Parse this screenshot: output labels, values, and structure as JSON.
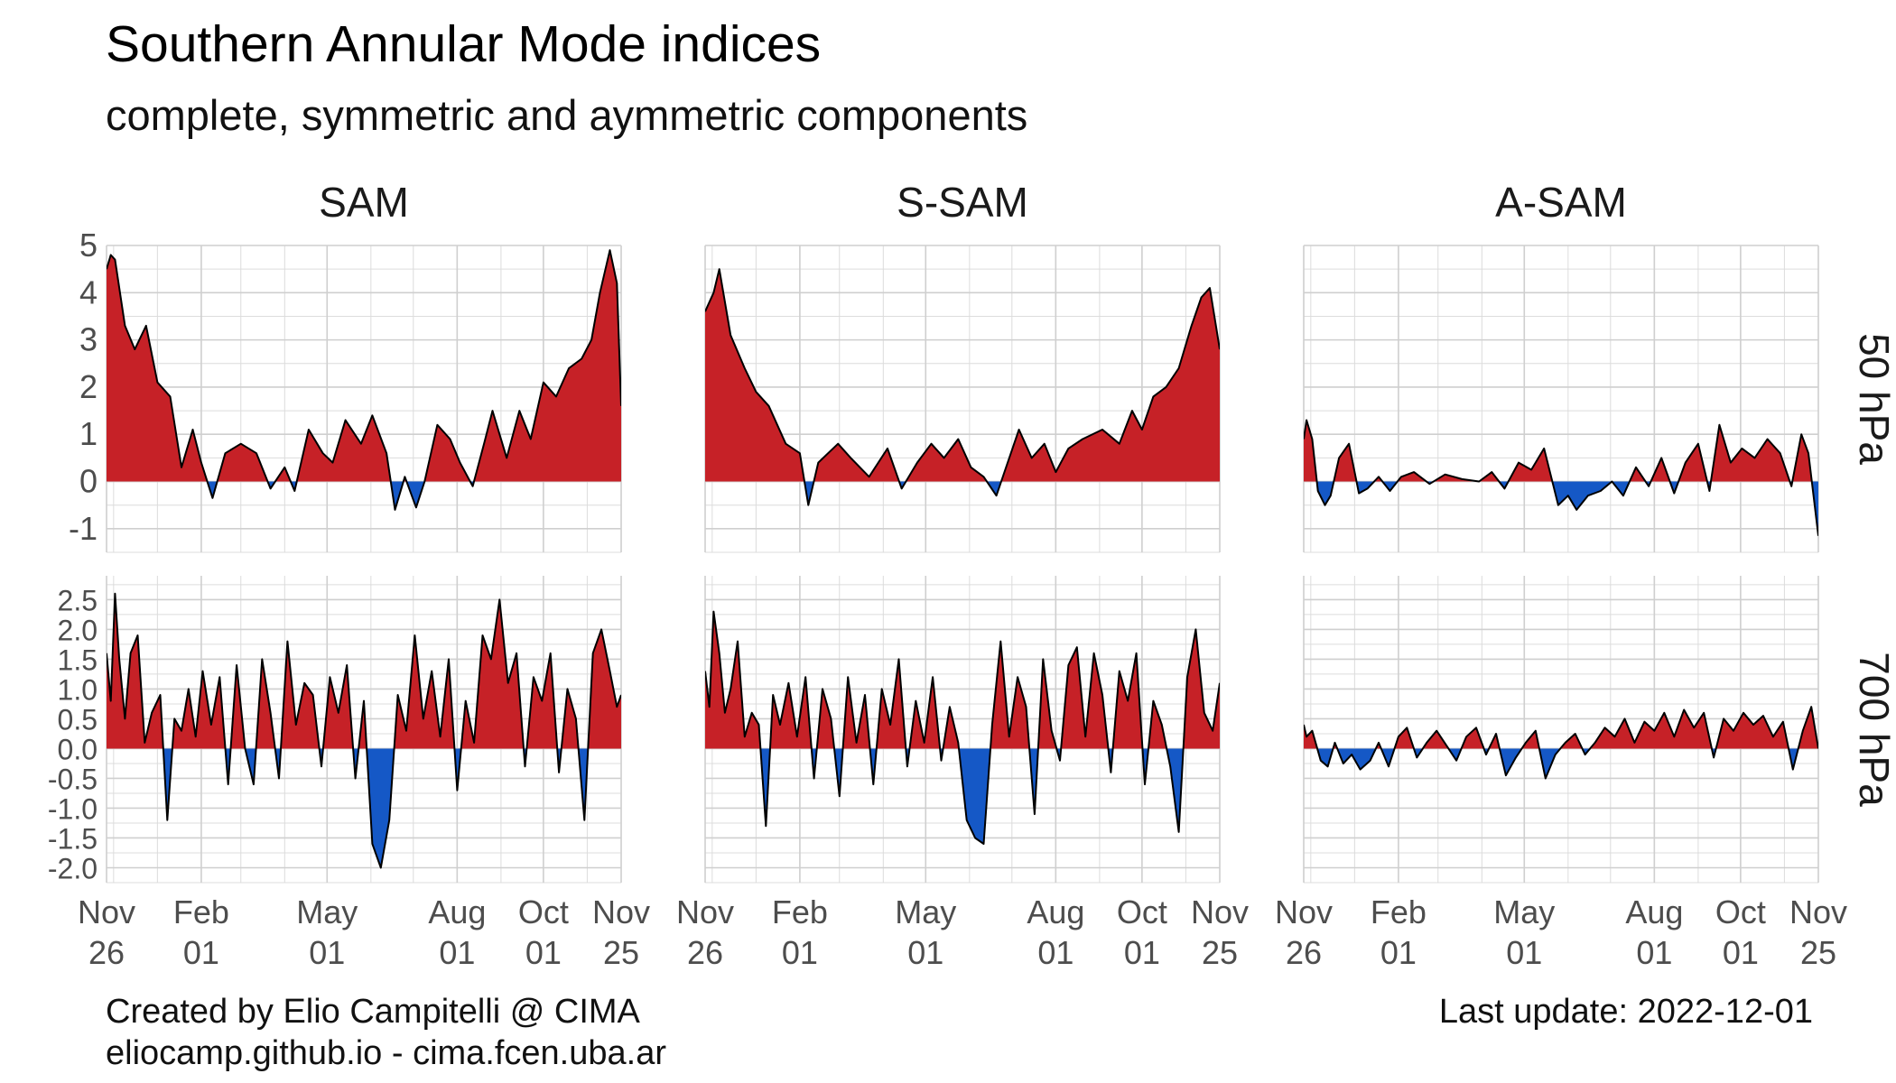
{
  "title": "Southern Annular Mode indices",
  "subtitle": "complete, symmetric and aymmetric components",
  "caption": {
    "credit_line1": "Created by Elio Campitelli @ CIMA",
    "credit_line2": "eliocamp.github.io - cima.fcen.uba.ar",
    "last_update": "Last update: 2022-12-01"
  },
  "colors": {
    "positive": "#c62127",
    "negative": "#1558c6",
    "line": "#000000",
    "grid": "#dcdcdc"
  },
  "chart_data": {
    "type": "area",
    "facet_columns": [
      "SAM",
      "S-SAM",
      "A-SAM"
    ],
    "facet_rows": [
      "50 hPa",
      "700 hPa"
    ],
    "x_range": [
      "2021-11-26",
      "2022-11-25"
    ],
    "x_ticks": [
      {
        "date": "2021-11-26",
        "line1": "Nov",
        "line2": "26"
      },
      {
        "date": "2022-02-01",
        "line1": "Feb",
        "line2": "01"
      },
      {
        "date": "2022-05-01",
        "line1": "May",
        "line2": "01"
      },
      {
        "date": "2022-08-01",
        "line1": "Aug",
        "line2": "01"
      },
      {
        "date": "2022-10-01",
        "line1": "Oct",
        "line2": "01"
      },
      {
        "date": "2022-11-25",
        "line1": "Nov",
        "line2": "25"
      }
    ],
    "rows": [
      {
        "name": "50 hPa",
        "ylim": [
          -1.5,
          5.0
        ],
        "y_ticks": [
          {
            "v": 5,
            "label": "5"
          },
          {
            "v": 4,
            "label": "4"
          },
          {
            "v": 3,
            "label": "3"
          },
          {
            "v": 2,
            "label": "2"
          },
          {
            "v": 1,
            "label": "1"
          },
          {
            "v": 0,
            "label": "0"
          },
          {
            "v": -1,
            "label": "-1"
          }
        ]
      },
      {
        "name": "700 hPa",
        "ylim": [
          -2.25,
          2.9
        ],
        "y_ticks": [
          {
            "v": 2.5,
            "label": "2.5"
          },
          {
            "v": 2.0,
            "label": "2.0"
          },
          {
            "v": 1.5,
            "label": "1.5"
          },
          {
            "v": 1.0,
            "label": "1.0"
          },
          {
            "v": 0.5,
            "label": "0.5"
          },
          {
            "v": 0.0,
            "label": "0.0"
          },
          {
            "v": -0.5,
            "label": "-0.5"
          },
          {
            "v": -1.0,
            "label": "-1.0"
          },
          {
            "v": -1.5,
            "label": "-1.5"
          },
          {
            "v": -2.0,
            "label": "-2.0"
          }
        ]
      }
    ],
    "series": [
      {
        "name": "SAM 50 hPa",
        "x": [
          "2021-11-26",
          "2021-11-29",
          "2021-12-02",
          "2021-12-09",
          "2021-12-16",
          "2021-12-24",
          "2022-01-01",
          "2022-01-10",
          "2022-01-18",
          "2022-01-26",
          "2022-02-01",
          "2022-02-09",
          "2022-02-18",
          "2022-03-01",
          "2022-03-12",
          "2022-03-22",
          "2022-04-01",
          "2022-04-08",
          "2022-04-18",
          "2022-04-28",
          "2022-05-05",
          "2022-05-14",
          "2022-05-25",
          "2022-06-02",
          "2022-06-12",
          "2022-06-18",
          "2022-06-25",
          "2022-07-03",
          "2022-07-09",
          "2022-07-18",
          "2022-07-27",
          "2022-08-03",
          "2022-08-12",
          "2022-08-20",
          "2022-08-26",
          "2022-09-05",
          "2022-09-14",
          "2022-09-22",
          "2022-10-01",
          "2022-10-10",
          "2022-10-19",
          "2022-10-28",
          "2022-11-04",
          "2022-11-10",
          "2022-11-17",
          "2022-11-22",
          "2022-11-25"
        ],
        "y": [
          4.5,
          4.8,
          4.7,
          3.3,
          2.8,
          3.3,
          2.1,
          1.8,
          0.3,
          1.1,
          0.4,
          -0.35,
          0.6,
          0.8,
          0.6,
          -0.15,
          0.3,
          -0.2,
          1.1,
          0.6,
          0.4,
          1.3,
          0.8,
          1.4,
          0.6,
          -0.6,
          0.1,
          -0.55,
          0.0,
          1.2,
          0.9,
          0.4,
          -0.1,
          0.8,
          1.5,
          0.5,
          1.5,
          0.9,
          2.1,
          1.8,
          2.4,
          2.6,
          3.0,
          4.0,
          4.9,
          4.2,
          1.6
        ]
      },
      {
        "name": "S-SAM 50 hPa",
        "x": [
          "2021-11-26",
          "2021-12-02",
          "2021-12-06",
          "2021-12-14",
          "2021-12-24",
          "2022-01-01",
          "2022-01-10",
          "2022-01-22",
          "2022-02-01",
          "2022-02-07",
          "2022-02-14",
          "2022-02-28",
          "2022-03-09",
          "2022-03-22",
          "2022-04-04",
          "2022-04-14",
          "2022-04-25",
          "2022-05-05",
          "2022-05-14",
          "2022-05-24",
          "2022-06-02",
          "2022-06-11",
          "2022-06-20",
          "2022-06-28",
          "2022-07-06",
          "2022-07-15",
          "2022-07-24",
          "2022-08-01",
          "2022-08-10",
          "2022-08-20",
          "2022-09-03",
          "2022-09-15",
          "2022-09-24",
          "2022-10-01",
          "2022-10-09",
          "2022-10-18",
          "2022-10-27",
          "2022-11-05",
          "2022-11-12",
          "2022-11-18",
          "2022-11-25"
        ],
        "y": [
          3.6,
          4.0,
          4.5,
          3.1,
          2.4,
          1.9,
          1.6,
          0.8,
          0.6,
          -0.5,
          0.4,
          0.8,
          0.5,
          0.1,
          0.7,
          -0.15,
          0.4,
          0.8,
          0.5,
          0.9,
          0.3,
          0.1,
          -0.3,
          0.4,
          1.1,
          0.5,
          0.8,
          0.2,
          0.7,
          0.9,
          1.1,
          0.8,
          1.5,
          1.1,
          1.8,
          2.0,
          2.4,
          3.3,
          3.9,
          4.1,
          2.8
        ]
      },
      {
        "name": "A-SAM 50 hPa",
        "x": [
          "2021-11-26",
          "2021-11-28",
          "2021-12-02",
          "2021-12-06",
          "2021-12-11",
          "2021-12-15",
          "2021-12-21",
          "2021-12-28",
          "2022-01-04",
          "2022-01-10",
          "2022-01-18",
          "2022-01-26",
          "2022-02-03",
          "2022-02-12",
          "2022-02-23",
          "2022-03-06",
          "2022-03-18",
          "2022-03-30",
          "2022-04-08",
          "2022-04-17",
          "2022-04-27",
          "2022-05-06",
          "2022-05-15",
          "2022-05-25",
          "2022-06-01",
          "2022-06-07",
          "2022-06-15",
          "2022-06-24",
          "2022-07-02",
          "2022-07-10",
          "2022-07-19",
          "2022-07-28",
          "2022-08-06",
          "2022-08-15",
          "2022-08-23",
          "2022-09-01",
          "2022-09-09",
          "2022-09-16",
          "2022-09-24",
          "2022-10-02",
          "2022-10-11",
          "2022-10-20",
          "2022-10-29",
          "2022-11-06",
          "2022-11-13",
          "2022-11-18",
          "2022-11-25"
        ],
        "y": [
          0.9,
          1.3,
          0.9,
          -0.2,
          -0.5,
          -0.3,
          0.5,
          0.8,
          -0.25,
          -0.15,
          0.1,
          -0.2,
          0.1,
          0.2,
          -0.05,
          0.15,
          0.05,
          0.0,
          0.2,
          -0.15,
          0.4,
          0.25,
          0.7,
          -0.5,
          -0.3,
          -0.6,
          -0.3,
          -0.2,
          0.0,
          -0.3,
          0.3,
          -0.1,
          0.5,
          -0.25,
          0.4,
          0.8,
          -0.2,
          1.2,
          0.4,
          0.7,
          0.5,
          0.9,
          0.6,
          -0.1,
          1.0,
          0.6,
          -1.15
        ]
      },
      {
        "name": "SAM 700 hPa",
        "x": [
          "2021-11-26",
          "2021-11-29",
          "2021-12-02",
          "2021-12-05",
          "2021-12-09",
          "2021-12-13",
          "2021-12-18",
          "2021-12-23",
          "2021-12-28",
          "2022-01-03",
          "2022-01-08",
          "2022-01-13",
          "2022-01-18",
          "2022-01-23",
          "2022-01-28",
          "2022-02-02",
          "2022-02-08",
          "2022-02-14",
          "2022-02-20",
          "2022-02-26",
          "2022-03-04",
          "2022-03-10",
          "2022-03-16",
          "2022-03-22",
          "2022-03-28",
          "2022-04-03",
          "2022-04-09",
          "2022-04-15",
          "2022-04-21",
          "2022-04-27",
          "2022-05-03",
          "2022-05-09",
          "2022-05-15",
          "2022-05-21",
          "2022-05-27",
          "2022-06-02",
          "2022-06-08",
          "2022-06-14",
          "2022-06-20",
          "2022-06-26",
          "2022-07-02",
          "2022-07-08",
          "2022-07-14",
          "2022-07-20",
          "2022-07-26",
          "2022-08-01",
          "2022-08-07",
          "2022-08-13",
          "2022-08-19",
          "2022-08-25",
          "2022-08-31",
          "2022-09-06",
          "2022-09-12",
          "2022-09-18",
          "2022-09-24",
          "2022-09-30",
          "2022-10-06",
          "2022-10-12",
          "2022-10-18",
          "2022-10-24",
          "2022-10-30",
          "2022-11-05",
          "2022-11-11",
          "2022-11-17",
          "2022-11-22",
          "2022-11-25"
        ],
        "y": [
          1.6,
          0.8,
          2.6,
          1.5,
          0.5,
          1.6,
          1.9,
          0.1,
          0.6,
          0.9,
          -1.2,
          0.5,
          0.3,
          1.0,
          0.2,
          1.3,
          0.4,
          1.2,
          -0.6,
          1.4,
          0.0,
          -0.6,
          1.5,
          0.6,
          -0.5,
          1.8,
          0.4,
          1.1,
          0.9,
          -0.3,
          1.2,
          0.6,
          1.4,
          -0.5,
          0.8,
          -1.6,
          -2.0,
          -1.2,
          0.9,
          0.3,
          1.9,
          0.5,
          1.3,
          0.2,
          1.5,
          -0.7,
          0.8,
          0.1,
          1.9,
          1.5,
          2.5,
          1.1,
          1.6,
          -0.3,
          1.2,
          0.8,
          1.6,
          -0.4,
          1.0,
          0.5,
          -1.2,
          1.6,
          2.0,
          1.3,
          0.7,
          0.9
        ]
      },
      {
        "name": "S-SAM 700 hPa",
        "x": [
          "2021-11-26",
          "2021-11-29",
          "2021-12-02",
          "2021-12-06",
          "2021-12-10",
          "2021-12-14",
          "2021-12-19",
          "2021-12-24",
          "2021-12-29",
          "2022-01-03",
          "2022-01-08",
          "2022-01-13",
          "2022-01-18",
          "2022-01-24",
          "2022-01-30",
          "2022-02-05",
          "2022-02-11",
          "2022-02-17",
          "2022-02-23",
          "2022-03-01",
          "2022-03-07",
          "2022-03-13",
          "2022-03-19",
          "2022-03-25",
          "2022-03-31",
          "2022-04-06",
          "2022-04-12",
          "2022-04-18",
          "2022-04-24",
          "2022-04-30",
          "2022-05-06",
          "2022-05-12",
          "2022-05-18",
          "2022-05-24",
          "2022-05-30",
          "2022-06-05",
          "2022-06-11",
          "2022-06-17",
          "2022-06-23",
          "2022-06-29",
          "2022-07-05",
          "2022-07-11",
          "2022-07-17",
          "2022-07-23",
          "2022-07-29",
          "2022-08-04",
          "2022-08-10",
          "2022-08-16",
          "2022-08-22",
          "2022-08-28",
          "2022-09-03",
          "2022-09-09",
          "2022-09-15",
          "2022-09-21",
          "2022-09-27",
          "2022-10-03",
          "2022-10-09",
          "2022-10-15",
          "2022-10-21",
          "2022-10-27",
          "2022-11-02",
          "2022-11-08",
          "2022-11-14",
          "2022-11-20",
          "2022-11-25"
        ],
        "y": [
          1.3,
          0.7,
          2.3,
          1.6,
          0.6,
          1.0,
          1.8,
          0.2,
          0.6,
          0.4,
          -1.3,
          0.9,
          0.4,
          1.1,
          0.2,
          1.2,
          -0.5,
          1.0,
          0.5,
          -0.8,
          1.2,
          0.1,
          0.9,
          -0.6,
          1.0,
          0.4,
          1.5,
          -0.3,
          0.8,
          0.1,
          1.2,
          -0.2,
          0.7,
          0.1,
          -1.2,
          -1.5,
          -1.6,
          0.4,
          1.8,
          0.2,
          1.2,
          0.7,
          -1.1,
          1.5,
          0.3,
          -0.2,
          1.4,
          1.7,
          0.2,
          1.6,
          0.9,
          -0.4,
          1.3,
          0.8,
          1.6,
          -0.6,
          0.8,
          0.4,
          -0.3,
          -1.4,
          1.2,
          2.0,
          0.6,
          0.3,
          1.1
        ]
      },
      {
        "name": "A-SAM 700 hPa",
        "x": [
          "2021-11-26",
          "2021-11-28",
          "2021-12-02",
          "2021-12-08",
          "2021-12-13",
          "2021-12-18",
          "2021-12-24",
          "2021-12-30",
          "2022-01-05",
          "2022-01-12",
          "2022-01-18",
          "2022-01-25",
          "2022-02-01",
          "2022-02-07",
          "2022-02-14",
          "2022-02-21",
          "2022-02-28",
          "2022-03-07",
          "2022-03-14",
          "2022-03-21",
          "2022-03-28",
          "2022-04-04",
          "2022-04-11",
          "2022-04-18",
          "2022-04-25",
          "2022-05-02",
          "2022-05-09",
          "2022-05-16",
          "2022-05-23",
          "2022-05-30",
          "2022-06-06",
          "2022-06-13",
          "2022-06-20",
          "2022-06-27",
          "2022-07-04",
          "2022-07-11",
          "2022-07-18",
          "2022-07-25",
          "2022-08-01",
          "2022-08-08",
          "2022-08-15",
          "2022-08-22",
          "2022-08-29",
          "2022-09-05",
          "2022-09-12",
          "2022-09-19",
          "2022-09-26",
          "2022-10-03",
          "2022-10-10",
          "2022-10-17",
          "2022-10-24",
          "2022-10-31",
          "2022-11-07",
          "2022-11-14",
          "2022-11-20",
          "2022-11-25"
        ],
        "y": [
          0.4,
          0.2,
          0.3,
          -0.2,
          -0.3,
          0.1,
          -0.25,
          -0.1,
          -0.35,
          -0.2,
          0.1,
          -0.3,
          0.2,
          0.35,
          -0.15,
          0.1,
          0.3,
          0.05,
          -0.2,
          0.2,
          0.35,
          -0.1,
          0.25,
          -0.45,
          -0.15,
          0.1,
          0.3,
          -0.5,
          -0.1,
          0.1,
          0.25,
          -0.1,
          0.1,
          0.35,
          0.2,
          0.5,
          0.1,
          0.45,
          0.3,
          0.6,
          0.2,
          0.65,
          0.35,
          0.6,
          -0.15,
          0.5,
          0.3,
          0.6,
          0.4,
          0.55,
          0.2,
          0.45,
          -0.35,
          0.3,
          0.7,
          0.0
        ]
      }
    ]
  }
}
